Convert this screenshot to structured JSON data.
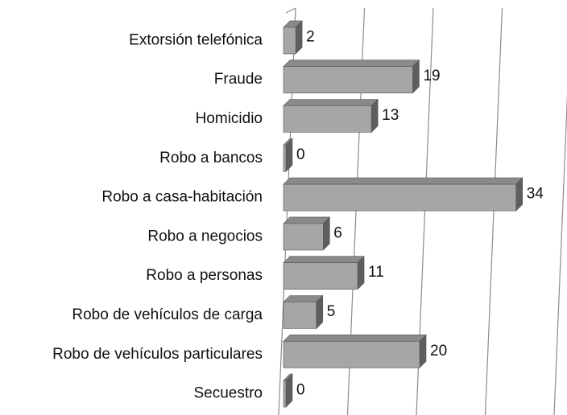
{
  "chart_data": {
    "type": "bar3d",
    "orientation": "horizontal",
    "categories": [
      "Extorsión telefónica",
      "Fraude",
      "Homicidio",
      "Robo a bancos",
      "Robo a casa-habitación",
      "Robo a negocios",
      "Robo a personas",
      "Robo de vehículos de carga",
      "Robo de vehículos particulares",
      "Secuestro"
    ],
    "values": [
      2,
      19,
      13,
      0,
      34,
      6,
      11,
      5,
      20,
      0
    ],
    "color": "#a6a6a6",
    "xlim": [
      0,
      40
    ],
    "xticks": [
      0,
      10,
      20,
      30,
      40
    ],
    "grid": true
  }
}
